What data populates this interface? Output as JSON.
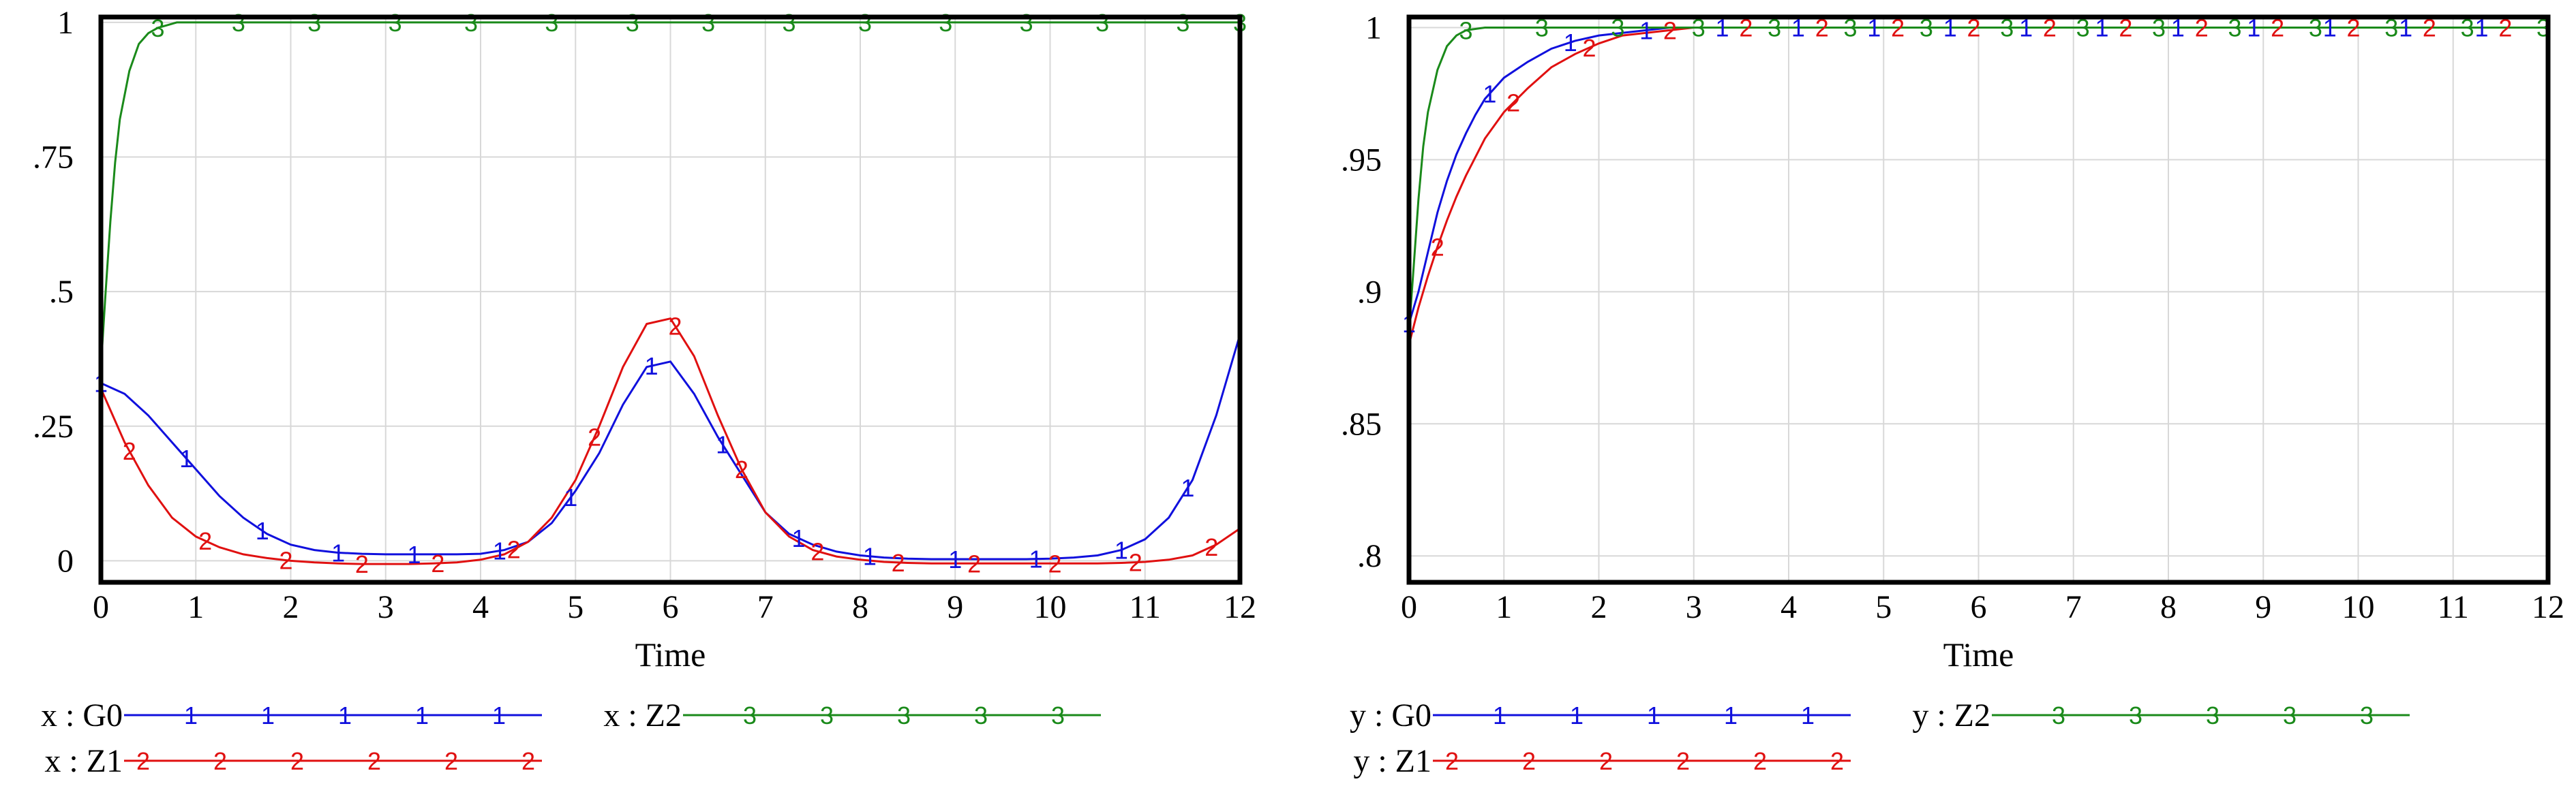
{
  "chart_data": [
    {
      "type": "line",
      "xlabel": "Time",
      "xlim": [
        0,
        12
      ],
      "ylim": [
        -0.04,
        1.01
      ],
      "x_ticks": [
        "0",
        "1",
        "2",
        "3",
        "4",
        "5",
        "6",
        "7",
        "8",
        "9",
        "10",
        "11",
        "12"
      ],
      "y_ticks": [
        {
          "value": 0,
          "label": "0"
        },
        {
          "value": 0.25,
          "label": ".25"
        },
        {
          "value": 0.5,
          "label": ".5"
        },
        {
          "value": 0.75,
          "label": ".75"
        },
        {
          "value": 1,
          "label": "1"
        }
      ],
      "grid": true,
      "legend_placement": "bottom",
      "series": [
        {
          "name": "x : G0",
          "marker": "1",
          "color": "#1010dd",
          "x": [
            0,
            0.25,
            0.5,
            0.75,
            1,
            1.25,
            1.5,
            1.75,
            2,
            2.25,
            2.5,
            2.75,
            3,
            3.25,
            3.5,
            3.75,
            4,
            4.25,
            4.5,
            4.75,
            5,
            5.25,
            5.5,
            5.75,
            6,
            6.25,
            6.5,
            6.75,
            7,
            7.25,
            7.5,
            7.75,
            8,
            8.25,
            8.5,
            8.75,
            9,
            9.25,
            9.5,
            9.75,
            10,
            10.25,
            10.5,
            10.75,
            11,
            11.25,
            11.5,
            11.75,
            12
          ],
          "y": [
            0.33,
            0.31,
            0.27,
            0.22,
            0.17,
            0.12,
            0.08,
            0.05,
            0.03,
            0.02,
            0.015,
            0.013,
            0.012,
            0.012,
            0.012,
            0.012,
            0.013,
            0.02,
            0.035,
            0.07,
            0.13,
            0.2,
            0.29,
            0.36,
            0.37,
            0.31,
            0.23,
            0.16,
            0.09,
            0.05,
            0.03,
            0.017,
            0.01,
            0.006,
            0.004,
            0.003,
            0.003,
            0.003,
            0.003,
            0.003,
            0.004,
            0.006,
            0.01,
            0.02,
            0.04,
            0.08,
            0.15,
            0.27,
            0.42
          ],
          "marker_x": [
            0,
            0.9,
            1.7,
            2.5,
            3.3,
            4.2,
            4.95,
            5.8,
            6.55,
            7.35,
            8.1,
            9.0,
            9.85,
            10.75,
            11.45
          ]
        },
        {
          "name": "x : Z1",
          "marker": "2",
          "color": "#e01010",
          "x": [
            0,
            0.25,
            0.5,
            0.75,
            1,
            1.25,
            1.5,
            1.75,
            2,
            2.25,
            2.5,
            2.75,
            3,
            3.25,
            3.5,
            3.75,
            4,
            4.25,
            4.5,
            4.75,
            5,
            5.25,
            5.5,
            5.75,
            6,
            6.25,
            6.5,
            6.75,
            7,
            7.25,
            7.5,
            7.75,
            8,
            8.25,
            8.5,
            8.75,
            9,
            9.25,
            9.5,
            9.75,
            10,
            10.25,
            10.5,
            10.75,
            11,
            11.25,
            11.5,
            11.75,
            12
          ],
          "y": [
            0.32,
            0.22,
            0.14,
            0.08,
            0.045,
            0.025,
            0.012,
            0.005,
            0.0,
            -0.003,
            -0.005,
            -0.006,
            -0.006,
            -0.006,
            -0.005,
            -0.003,
            0.002,
            0.012,
            0.035,
            0.08,
            0.15,
            0.25,
            0.36,
            0.44,
            0.45,
            0.38,
            0.27,
            0.17,
            0.09,
            0.045,
            0.02,
            0.008,
            0.002,
            -0.002,
            -0.004,
            -0.005,
            -0.005,
            -0.005,
            -0.005,
            -0.005,
            -0.005,
            -0.005,
            -0.005,
            -0.004,
            -0.002,
            0.002,
            0.01,
            0.03,
            0.06
          ],
          "marker_x": [
            0.3,
            1.1,
            1.95,
            2.75,
            3.55,
            4.35,
            5.2,
            6.05,
            6.75,
            7.55,
            8.4,
            9.2,
            10.05,
            10.9,
            11.7
          ]
        },
        {
          "name": "x : Z2",
          "marker": "3",
          "color": "#1a8a1a",
          "x": [
            0,
            0.05,
            0.1,
            0.15,
            0.2,
            0.3,
            0.4,
            0.5,
            0.6,
            0.7,
            0.8,
            1,
            2,
            3,
            4,
            5,
            6,
            7,
            8,
            9,
            10,
            11,
            12
          ],
          "y": [
            0.36,
            0.5,
            0.63,
            0.74,
            0.82,
            0.91,
            0.96,
            0.98,
            0.99,
            0.995,
            1,
            1,
            1,
            1,
            1,
            1,
            1,
            1,
            1,
            1,
            1,
            1,
            1
          ],
          "marker_x": [
            0.6,
            1.45,
            2.25,
            3.1,
            3.9,
            4.75,
            5.6,
            6.4,
            7.25,
            8.05,
            8.9,
            9.75,
            10.55,
            11.4,
            12
          ]
        }
      ]
    },
    {
      "type": "line",
      "xlabel": "Time",
      "xlim": [
        0,
        12
      ],
      "ylim": [
        0.79,
        1.004
      ],
      "x_ticks": [
        "0",
        "1",
        "2",
        "3",
        "4",
        "5",
        "6",
        "7",
        "8",
        "9",
        "10",
        "11",
        "12"
      ],
      "y_ticks": [
        {
          "value": 0.8,
          "label": ".8"
        },
        {
          "value": 0.85,
          "label": ".85"
        },
        {
          "value": 0.9,
          "label": ".9"
        },
        {
          "value": 0.95,
          "label": ".95"
        },
        {
          "value": 1,
          "label": "1"
        }
      ],
      "grid": true,
      "legend_placement": "bottom",
      "series": [
        {
          "name": "y : G0",
          "marker": "1",
          "color": "#1010dd",
          "x": [
            0,
            0.1,
            0.2,
            0.3,
            0.4,
            0.5,
            0.6,
            0.7,
            0.8,
            1,
            1.25,
            1.5,
            1.75,
            2,
            2.25,
            2.5,
            2.75,
            3,
            3.5,
            4,
            12
          ],
          "y": [
            0.888,
            0.9,
            0.915,
            0.93,
            0.942,
            0.952,
            0.96,
            0.967,
            0.973,
            0.981,
            0.987,
            0.992,
            0.995,
            0.997,
            0.998,
            0.999,
            1,
            1,
            1,
            1,
            1
          ],
          "marker_x": [
            0,
            0.85,
            1.7,
            2.5,
            3.3,
            4.1,
            4.9,
            5.7,
            6.5,
            7.3,
            8.1,
            8.9,
            9.7,
            10.5,
            11.3
          ]
        },
        {
          "name": "y : Z1",
          "marker": "2",
          "color": "#e01010",
          "x": [
            0,
            0.1,
            0.2,
            0.3,
            0.4,
            0.5,
            0.6,
            0.7,
            0.8,
            1,
            1.25,
            1.5,
            1.75,
            2,
            2.25,
            2.5,
            2.75,
            3,
            3.5,
            4,
            12
          ],
          "y": [
            0.88,
            0.894,
            0.906,
            0.917,
            0.927,
            0.936,
            0.944,
            0.951,
            0.958,
            0.968,
            0.977,
            0.985,
            0.99,
            0.994,
            0.997,
            0.998,
            0.999,
            1,
            1,
            1,
            1
          ],
          "marker_x": [
            0.3,
            1.1,
            1.9,
            2.75,
            3.55,
            4.35,
            5.15,
            5.95,
            6.75,
            7.55,
            8.35,
            9.15,
            9.95,
            10.75,
            11.55
          ]
        },
        {
          "name": "y : Z2",
          "marker": "3",
          "color": "#1a8a1a",
          "x": [
            0,
            0.05,
            0.1,
            0.15,
            0.2,
            0.3,
            0.4,
            0.5,
            0.6,
            0.8,
            1,
            2,
            12
          ],
          "y": [
            0.885,
            0.91,
            0.935,
            0.955,
            0.968,
            0.984,
            0.993,
            0.997,
            0.999,
            1,
            1,
            1,
            1
          ],
          "marker_x": [
            0.6,
            1.4,
            2.2,
            3.05,
            3.85,
            4.65,
            5.45,
            6.3,
            7.1,
            7.9,
            8.7,
            9.55,
            10.35,
            11.15,
            11.95
          ]
        }
      ]
    }
  ]
}
